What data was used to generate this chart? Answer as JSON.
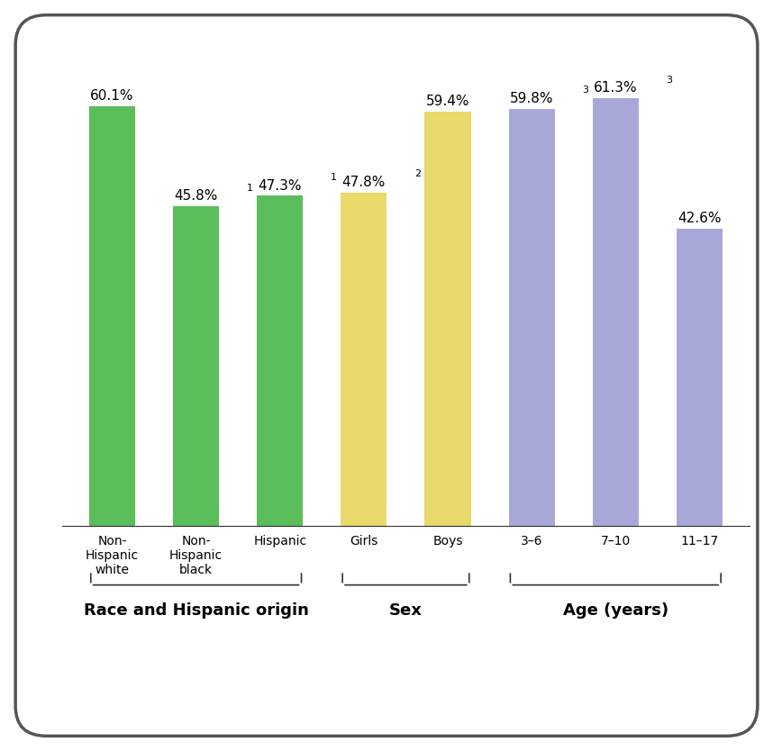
{
  "bars": [
    {
      "label": "Non-\nHispanic\nwhite",
      "value": 60.1,
      "color": "#5abf5a",
      "superscript": "",
      "group": "Race and Hispanic origin"
    },
    {
      "label": "Non-\nHispanic\nblack",
      "value": 45.8,
      "color": "#5abf5a",
      "superscript": "1",
      "group": "Race and Hispanic origin"
    },
    {
      "label": "Hispanic",
      "value": 47.3,
      "color": "#5abf5a",
      "superscript": "1",
      "group": "Race and Hispanic origin"
    },
    {
      "label": "Girls",
      "value": 47.8,
      "color": "#e8d96a",
      "superscript": "2",
      "group": "Sex"
    },
    {
      "label": "Boys",
      "value": 59.4,
      "color": "#e8d96a",
      "superscript": "",
      "group": "Sex"
    },
    {
      "label": "3–6",
      "value": 59.8,
      "color": "#a8a8d8",
      "superscript": "3",
      "group": "Age (years)"
    },
    {
      "label": "7–10",
      "value": 61.3,
      "color": "#a8a8d8",
      "superscript": "3",
      "group": "Age (years)"
    },
    {
      "label": "11–17",
      "value": 42.6,
      "color": "#a8a8d8",
      "superscript": "",
      "group": "Age (years)"
    }
  ],
  "groups": [
    {
      "label": "Race and Hispanic origin",
      "start": 0,
      "end": 2
    },
    {
      "label": "Sex",
      "start": 3,
      "end": 4
    },
    {
      "label": "Age (years)",
      "start": 5,
      "end": 7
    }
  ],
  "ylim": [
    0,
    70
  ],
  "bar_width": 0.55,
  "background_color": "#ffffff",
  "border_color": "#555555",
  "label_fontsize": 10,
  "value_fontsize": 11,
  "group_label_fontsize": 13
}
